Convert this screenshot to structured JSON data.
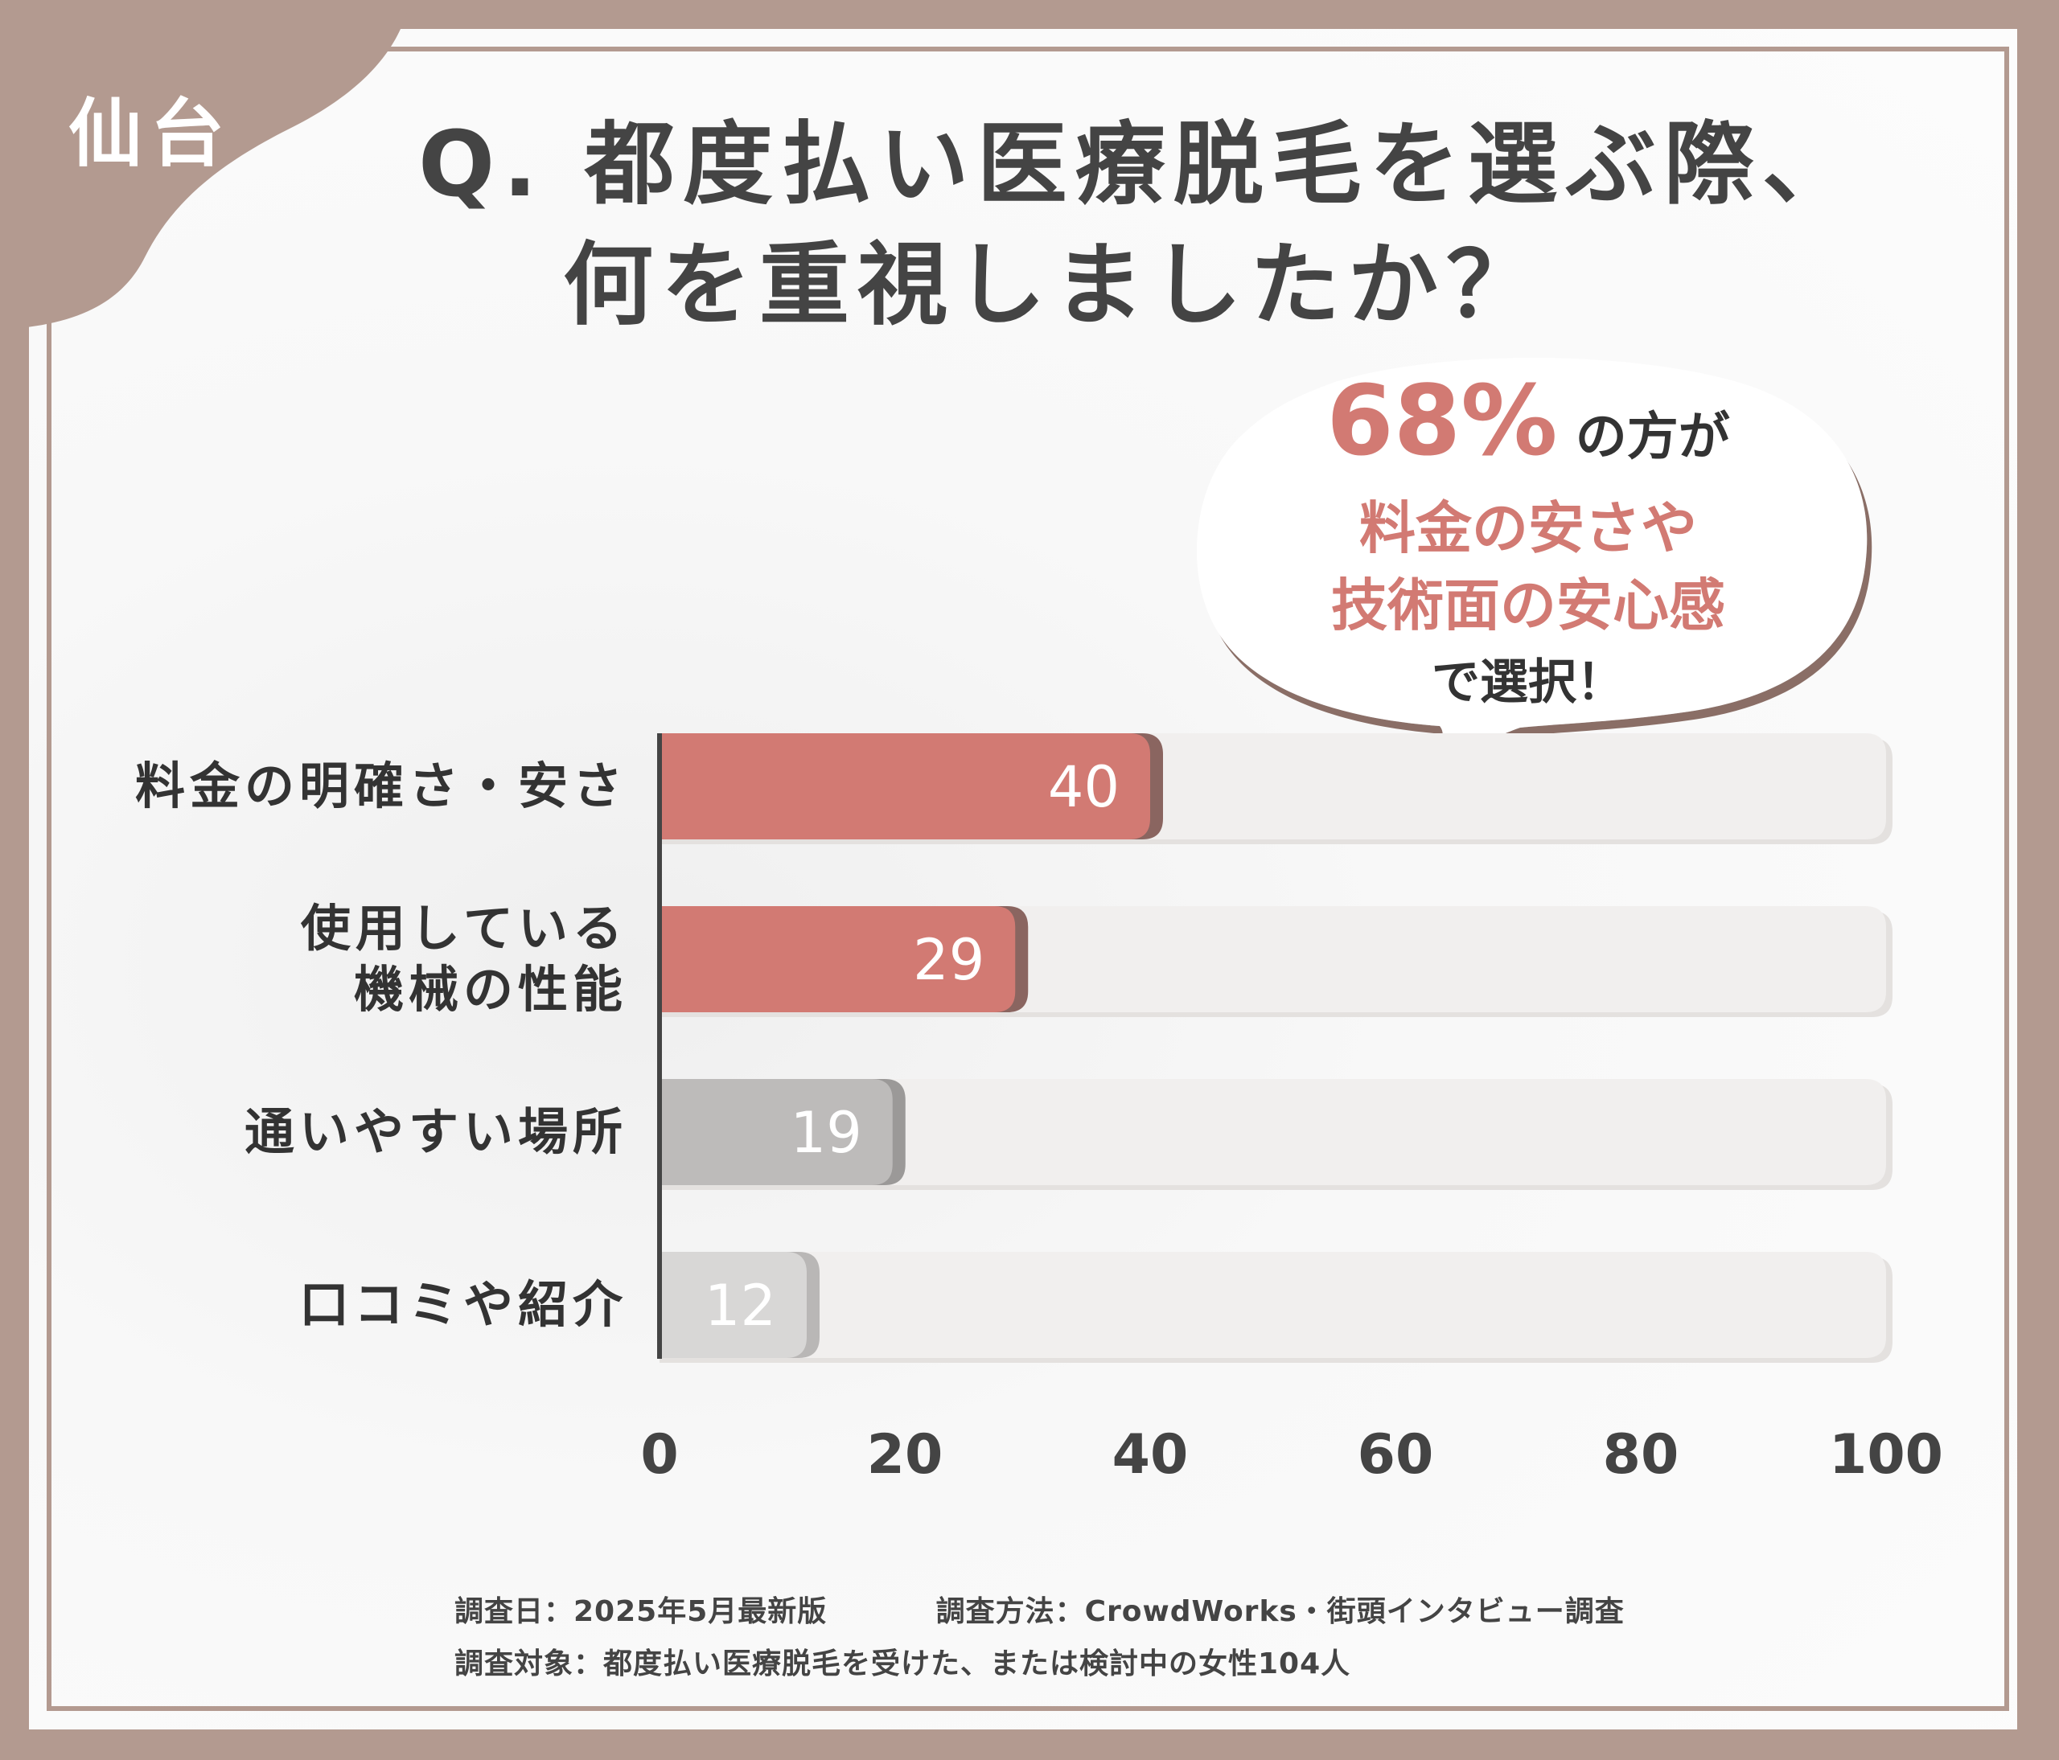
{
  "header": {
    "region": "仙台",
    "question_line1": "Q. 都度払い医療脱毛を選ぶ際、",
    "question_line2": "何を重視しましたか？"
  },
  "callout": {
    "percent": "68%",
    "percent_suffix": " の方が",
    "highlight_line1": "料金の安さや",
    "highlight_line2": "技術面の安心感",
    "tail": "で選択！"
  },
  "chart_data": {
    "type": "bar",
    "orientation": "horizontal",
    "categories": [
      "料金の明確さ・安さ",
      "使用している\n機械の性能",
      "通いやすい場所",
      "口コミや紹介"
    ],
    "values": [
      40,
      29,
      19,
      12
    ],
    "data_labels": [
      "40",
      "29",
      "19",
      "12"
    ],
    "xlim": [
      0,
      100
    ],
    "xticks": [
      "0",
      "20",
      "40",
      "60",
      "80",
      "100"
    ],
    "bar_colors": [
      "#d27a73",
      "#d27a73",
      "#bdbbba",
      "#d8d7d6"
    ],
    "bar_shadow_colors": [
      "#8a6560",
      "#8a6560",
      "#9b9998",
      "#b9b7b6"
    ],
    "track_color": "#f1efee",
    "grid": false
  },
  "footer": {
    "survey_date": "調査日：2025年5月最新版",
    "survey_method": "調査方法：CrowdWorks・街頭インタビュー調査",
    "survey_target": "調査対象：都度払い医療脱毛を受けた、または検討中の女性104人"
  },
  "colors": {
    "frame": "#b39a90",
    "accent": "#d27a73",
    "text": "#444444"
  }
}
